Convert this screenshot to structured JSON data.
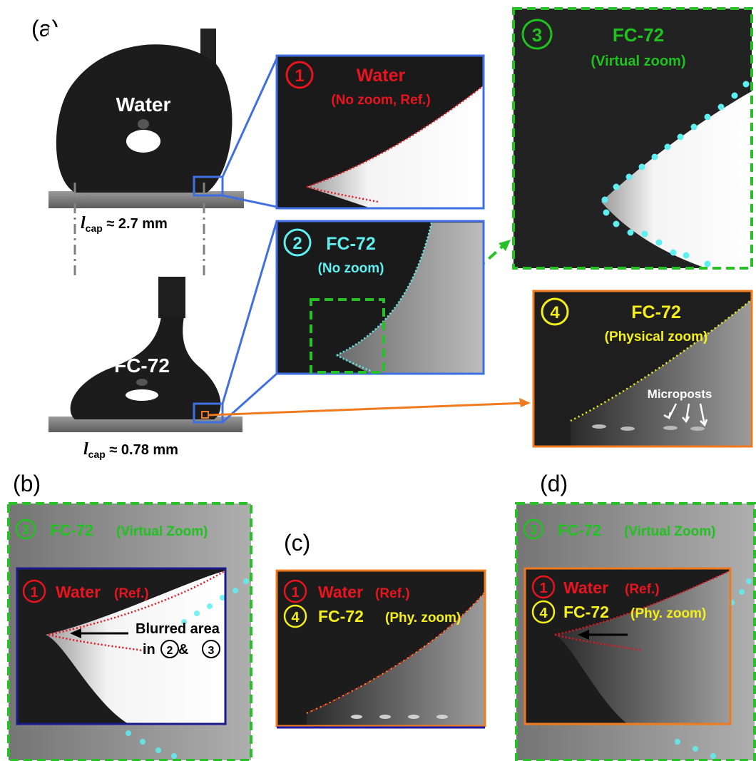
{
  "panels": {
    "a": "(a)",
    "b": "(b)",
    "c": "(c)",
    "d": "(d)"
  },
  "drops": {
    "water_label": "Water",
    "fc72_label": "FC-72",
    "water_lcap": {
      "symbol": "l",
      "sub": "cap",
      "value": " ≈ 2.7 mm"
    },
    "fc72_lcap": {
      "symbol": "l",
      "sub": "cap",
      "value": " ≈ 0.78 mm"
    }
  },
  "insets": {
    "i1": {
      "num": "1",
      "title": "Water",
      "subtitle": "(No zoom, Ref.)"
    },
    "i2": {
      "num": "2",
      "title": "FC-72",
      "subtitle": "(No zoom)"
    },
    "i3": {
      "num": "3",
      "title": "FC-72",
      "subtitle": "(Virtual zoom)"
    },
    "i4": {
      "num": "4",
      "title": "FC-72",
      "subtitle": "(Physical zoom)",
      "annotation": "Microposts"
    }
  },
  "panel_b": {
    "top_num": "3",
    "top_title": "FC-72",
    "top_sub": "(Virtual Zoom)",
    "ref_num": "1",
    "ref_title": "Water",
    "ref_sub": "(Ref.)",
    "blur_line1": "Blurred area",
    "blur_line2_prefix": "in ",
    "blur_num_a": "2",
    "blur_amp": " & ",
    "blur_num_b": "3"
  },
  "panel_c": {
    "ref_num": "1",
    "ref_title": "Water",
    "ref_sub": "(Ref.)",
    "phy_num": "4",
    "phy_title": "FC-72",
    "phy_sub": "(Phy. zoom)"
  },
  "panel_d": {
    "top_num": "3",
    "top_title": "FC-72",
    "top_sub": "(Virtual Zoom)",
    "ref_num": "1",
    "ref_title": "Water",
    "ref_sub": "(Ref.)",
    "phy_num": "4",
    "phy_title": "FC-72",
    "phy_sub": "(Phy. zoom)"
  },
  "colors": {
    "red": "#e8141e",
    "cyan": "#5ef0f0",
    "green": "#1fc21f",
    "yellow": "#f5f01a",
    "blue_frame": "#3f6fe0",
    "navy_frame": "#1a1aa8",
    "orange": "#f07a1e",
    "dash_green": "#27c027"
  }
}
